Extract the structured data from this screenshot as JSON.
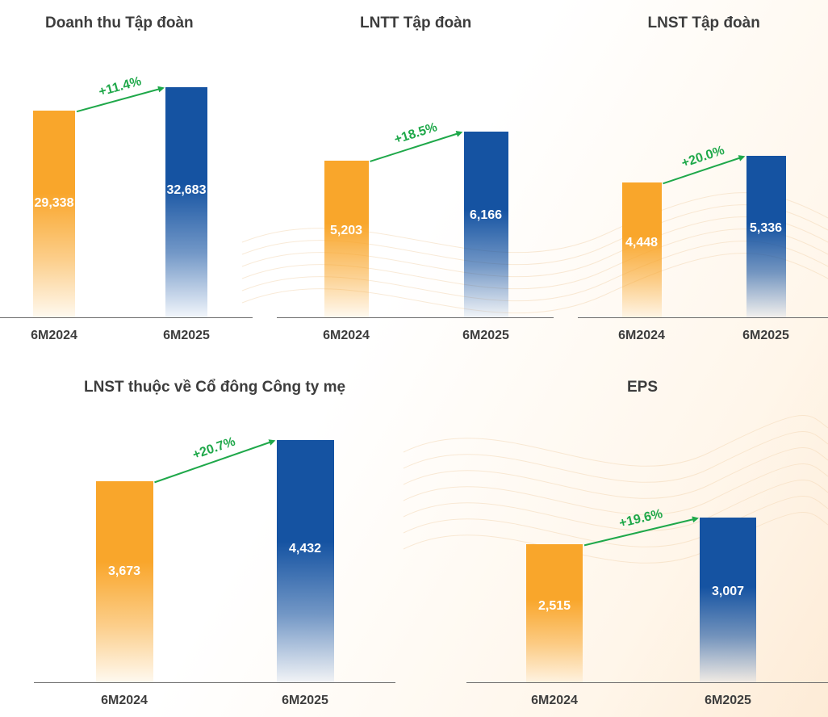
{
  "colors": {
    "y2024": "#f9a62b",
    "y2025": "#1553a2",
    "growth": "#1fa84a",
    "text": "#3d3d3d"
  },
  "chart_data": [
    {
      "type": "bar",
      "title": "Doanh thu Tập đoàn",
      "categories": [
        "6M2024",
        "6M2025"
      ],
      "values": [
        29338,
        32683
      ],
      "value_labels": [
        "29,338",
        "32,683"
      ],
      "growth_label": "+11.4%"
    },
    {
      "type": "bar",
      "title": "LNTT Tập đoàn",
      "categories": [
        "6M2024",
        "6M2025"
      ],
      "values": [
        5203,
        6166
      ],
      "value_labels": [
        "5,203",
        "6,166"
      ],
      "growth_label": "+18.5%"
    },
    {
      "type": "bar",
      "title": "LNST Tập đoàn",
      "categories": [
        "6M2024",
        "6M2025"
      ],
      "values": [
        4448,
        5336
      ],
      "value_labels": [
        "4,448",
        "5,336"
      ],
      "growth_label": "+20.0%"
    },
    {
      "type": "bar",
      "title": "LNST thuộc về Cổ đông Công ty mẹ",
      "categories": [
        "6M2024",
        "6M2025"
      ],
      "values": [
        3673,
        4432
      ],
      "value_labels": [
        "3,673",
        "4,432"
      ],
      "growth_label": "+20.7%"
    },
    {
      "type": "bar",
      "title": "EPS",
      "categories": [
        "6M2024",
        "6M2025"
      ],
      "values": [
        2515,
        3007
      ],
      "value_labels": [
        "2,515",
        "3,007"
      ],
      "growth_label": "+19.6%"
    }
  ]
}
